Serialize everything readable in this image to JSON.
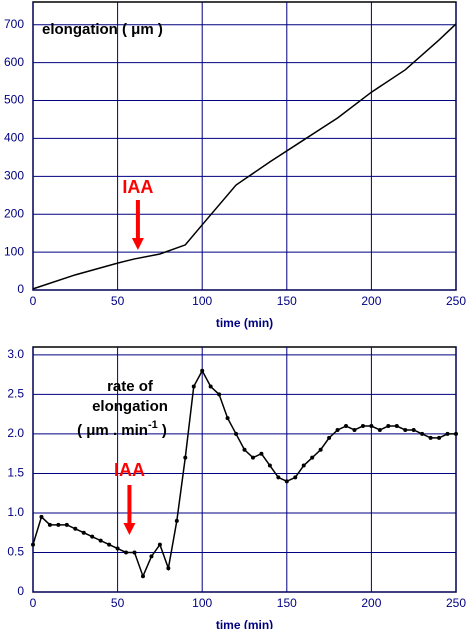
{
  "chart_data": [
    {
      "type": "line",
      "title": "elongation ( μm )",
      "xlabel": "time (min)",
      "color": "#000000",
      "grid": true,
      "x": [
        0,
        25,
        50,
        60,
        75,
        90,
        100,
        120,
        140,
        160,
        180,
        200,
        220,
        240,
        250
      ],
      "values": [
        3,
        40,
        71,
        82,
        95,
        119,
        172,
        277,
        338,
        396,
        454,
        522,
        581,
        660,
        702
      ],
      "xlim": [
        0,
        250
      ],
      "xticks": [
        0,
        50,
        100,
        150,
        200,
        250
      ],
      "ylim": [
        0,
        760
      ],
      "yticks": [
        0,
        100,
        200,
        300,
        400,
        500,
        600,
        700
      ],
      "annotation": {
        "text": "IAA",
        "x": 62
      }
    },
    {
      "type": "line",
      "title": [
        "rate of",
        "elongation"
      ],
      "unit": [
        "( μm . min",
        "-1",
        " )"
      ],
      "xlabel": "time (min)",
      "color": "#000000",
      "grid": true,
      "markers": true,
      "x": [
        0,
        5,
        10,
        15,
        20,
        25,
        30,
        35,
        40,
        45,
        50,
        55,
        60,
        65,
        70,
        75,
        80,
        85,
        90,
        95,
        100,
        105,
        110,
        115,
        120,
        125,
        130,
        135,
        140,
        145,
        150,
        155,
        160,
        165,
        170,
        175,
        180,
        185,
        190,
        195,
        200,
        205,
        210,
        215,
        220,
        225,
        230,
        235,
        240,
        245,
        250
      ],
      "values": [
        0.6,
        0.95,
        0.85,
        0.85,
        0.85,
        0.8,
        0.75,
        0.7,
        0.65,
        0.6,
        0.55,
        0.5,
        0.5,
        0.2,
        0.45,
        0.6,
        0.3,
        0.9,
        1.7,
        2.6,
        2.8,
        2.6,
        2.5,
        2.2,
        2.0,
        1.8,
        1.7,
        1.75,
        1.6,
        1.45,
        1.4,
        1.45,
        1.6,
        1.7,
        1.8,
        1.95,
        2.05,
        2.1,
        2.05,
        2.1,
        2.1,
        2.05,
        2.1,
        2.1,
        2.05,
        2.05,
        2.0,
        1.95,
        1.95,
        2.0,
        2.0
      ],
      "xlim": [
        0,
        250
      ],
      "xticks": [
        0,
        50,
        100,
        150,
        200,
        250
      ],
      "ylim": [
        0,
        3.1
      ],
      "yticks": [
        0,
        0.5,
        {
          "value": 1,
          "label": "1.0"
        },
        1.5,
        {
          "value": 2,
          "label": "2.0"
        },
        2.5,
        {
          "value": 3,
          "label": "3.0"
        }
      ],
      "annotation": {
        "text": "IAA",
        "x": 57
      }
    }
  ]
}
